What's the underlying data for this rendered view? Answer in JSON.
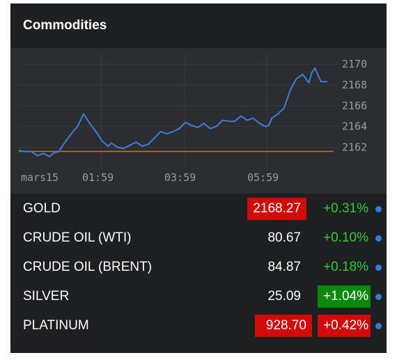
{
  "widget": {
    "title": "Commodities"
  },
  "colors": {
    "line": "#3d7ede",
    "baseline": "#c8752a",
    "up_text": "#33cc33",
    "flash_red": "#d10a0a",
    "flash_green": "#0a8a0a",
    "dot": "#2f7de1"
  },
  "chart_data": {
    "type": "line",
    "x_tick_labels": [
      "mars15",
      "01:59",
      "03:59",
      "05:59"
    ],
    "y_tick_labels": [
      "2170",
      "2168",
      "2166",
      "2164",
      "2162"
    ],
    "ylim": [
      2160.5,
      2171
    ],
    "grid": true,
    "baseline": 2161.6,
    "series": [
      {
        "x": [
          0.0,
          0.02,
          0.04,
          0.06,
          0.08,
          0.1,
          0.11,
          0.13,
          0.15,
          0.17,
          0.19,
          0.21,
          0.23,
          0.25,
          0.27,
          0.29,
          0.3,
          0.32,
          0.34,
          0.36,
          0.38,
          0.4,
          0.42,
          0.44,
          0.46,
          0.48,
          0.5,
          0.52,
          0.54,
          0.56,
          0.58,
          0.6,
          0.62,
          0.64,
          0.66,
          0.68,
          0.7,
          0.72,
          0.74,
          0.76,
          0.78,
          0.8,
          0.81,
          0.82,
          0.84,
          0.86,
          0.88,
          0.9,
          0.92,
          0.94,
          0.95,
          0.96,
          0.97,
          0.98,
          1.0
        ],
        "y": [
          2161.7,
          2161.6,
          2161.6,
          2161.2,
          2161.4,
          2161.1,
          2161.4,
          2161.6,
          2162.5,
          2163.3,
          2164.0,
          2165.2,
          2164.3,
          2163.5,
          2162.6,
          2162.1,
          2162.4,
          2162.0,
          2161.9,
          2162.2,
          2162.5,
          2162.1,
          2162.3,
          2162.9,
          2163.5,
          2163.3,
          2163.5,
          2163.8,
          2164.4,
          2164.1,
          2163.9,
          2164.3,
          2163.8,
          2164.0,
          2164.6,
          2164.5,
          2164.5,
          2165.0,
          2164.6,
          2164.8,
          2164.3,
          2164.0,
          2164.1,
          2164.8,
          2165.2,
          2165.8,
          2167.5,
          2168.6,
          2169.0,
          2168.2,
          2169.2,
          2169.6,
          2168.9,
          2168.3,
          2168.3
        ]
      }
    ]
  },
  "rows": [
    {
      "name": "GOLD",
      "price": "2168.27",
      "change": "+0.31%"
    },
    {
      "name": "CRUDE OIL (WTI)",
      "price": "80.67",
      "change": "+0.10%"
    },
    {
      "name": "CRUDE OIL (BRENT)",
      "price": "84.87",
      "change": "+0.18%"
    },
    {
      "name": "SILVER",
      "price": "25.09",
      "change": "+1.04%"
    },
    {
      "name": "PLATINUM",
      "price": "928.70",
      "change": "+0.42%"
    }
  ]
}
